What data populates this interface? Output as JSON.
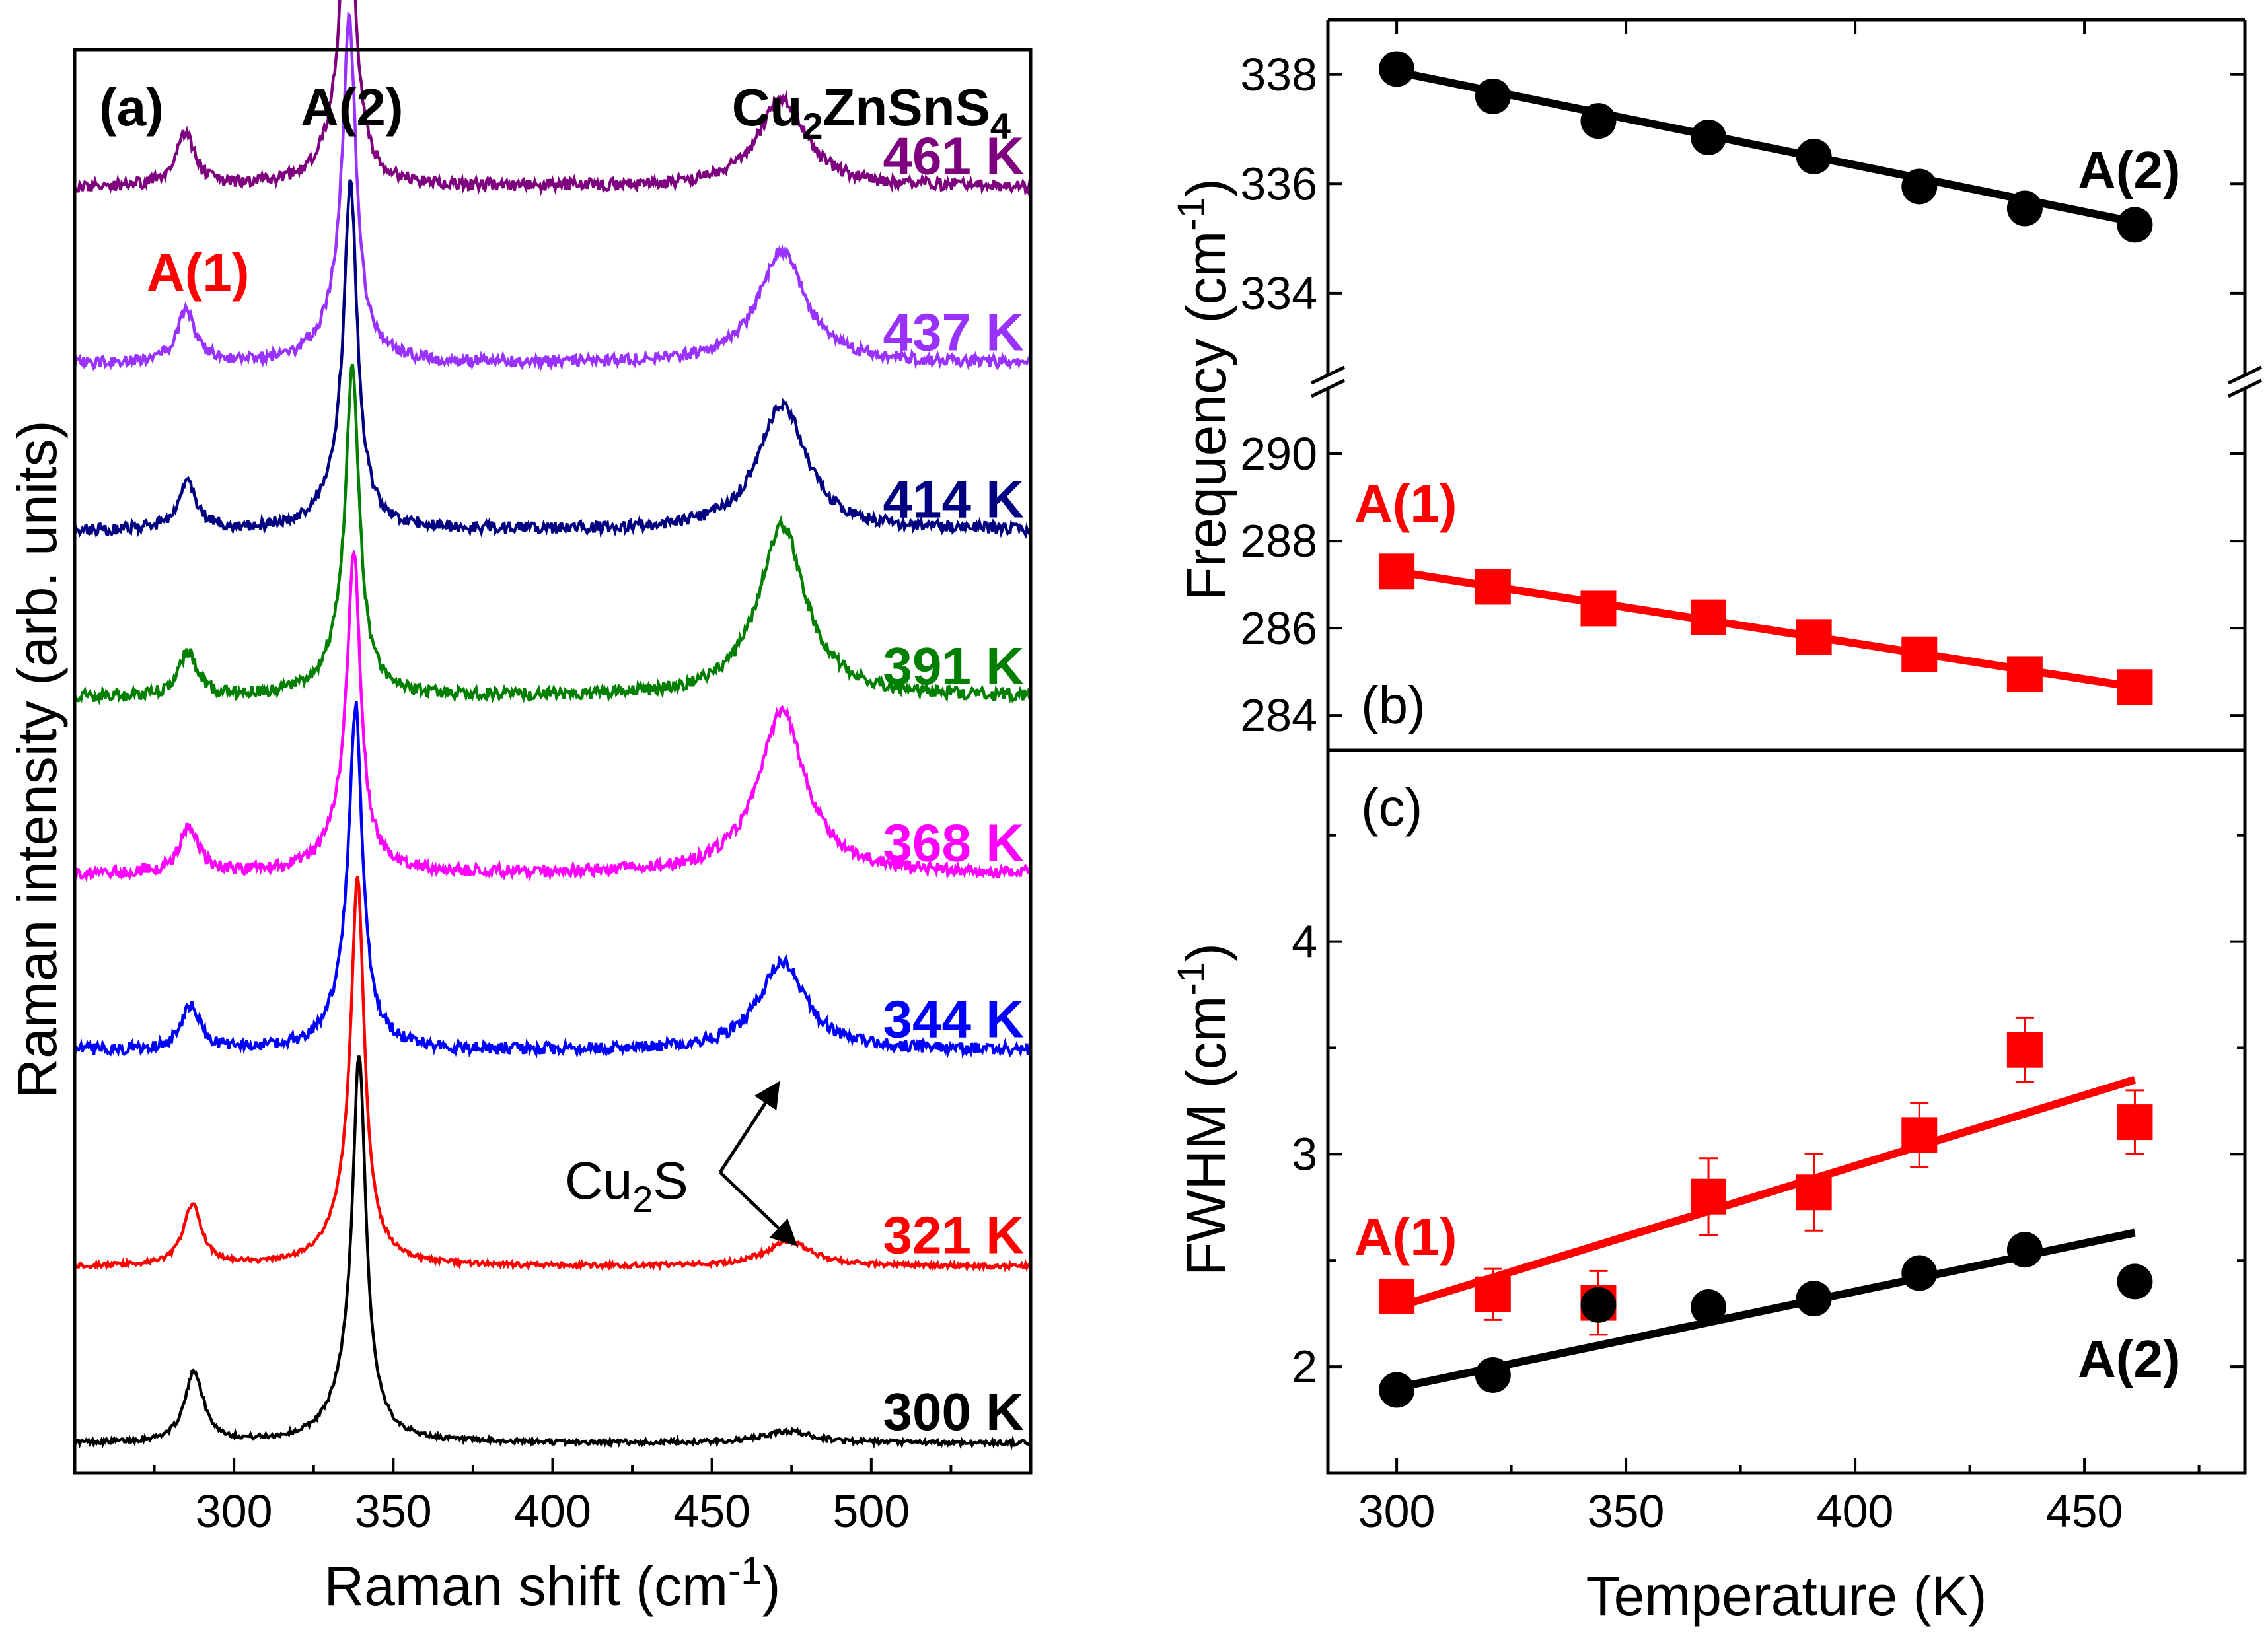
{
  "figure": {
    "panel_a": {
      "label": "(a)",
      "material": {
        "base": "Cu",
        "sub1": "2",
        "mid": "ZnSnS",
        "sub2": "4"
      },
      "peak_a1": "A(1)",
      "peak_a2": "A(2)",
      "cu2s": {
        "base": "Cu",
        "sub": "2",
        "tail": "S"
      },
      "xlabel": {
        "pre": "Raman shift (cm",
        "sup": "-1",
        "post": ")"
      },
      "ylabel": "Raman intensity (arb. units)"
    },
    "panel_b": {
      "label": "(b)",
      "ylabel": {
        "pre": "Frequency (cm",
        "sup": "-1",
        "post": ")"
      },
      "a1_label": "A(1)",
      "a2_label": "A(2)"
    },
    "panel_c": {
      "label": "(c)",
      "ylabel": {
        "pre": "FWHM (cm",
        "sup": "-1",
        "post": ")"
      },
      "xlabel": "Temperature (K)",
      "a1_label": "A(1)",
      "a2_label": "A(2)"
    }
  },
  "chart_data": [
    {
      "id": "a",
      "type": "line",
      "title": "Cu2ZnSnS4",
      "xlabel": "Raman shift (cm-1)",
      "ylabel": "Raman intensity (arb. units)",
      "xlim": [
        250,
        550
      ],
      "xticks": [
        300,
        350,
        400,
        450,
        500
      ],
      "ylim": [
        0,
        14
      ],
      "peaks": [
        {
          "name": "A(1)",
          "center": 287,
          "width": 3.5
        },
        {
          "name": "A(2)",
          "center": 338,
          "width": 2.5
        },
        {
          "name": "Cu2S",
          "center": 472,
          "width": 9
        }
      ],
      "series": [
        {
          "name": "300 K",
          "color": "#000000",
          "offset": 0.0,
          "a1_pos": 287.5,
          "a1_amp": 0.72,
          "a2_pos": 339.3,
          "a2_amp": 3.6,
          "cu_amp": 0.12,
          "noise": 0.05
        },
        {
          "name": "321 K",
          "color": "#ff0000",
          "offset": 1.8,
          "a1_pos": 287.0,
          "a1_amp": 0.62,
          "a2_pos": 338.8,
          "a2_amp": 3.6,
          "cu_amp": 0.25,
          "noise": 0.05
        },
        {
          "name": "344 K",
          "color": "#0000ff",
          "offset": 4.0,
          "a1_pos": 286.4,
          "a1_amp": 0.45,
          "a2_pos": 338.2,
          "a2_amp": 3.2,
          "cu_amp": 0.9,
          "noise": 0.12
        },
        {
          "name": "368 K",
          "color": "#ff00ff",
          "offset": 5.8,
          "a1_pos": 285.9,
          "a1_amp": 0.48,
          "a2_pos": 337.6,
          "a2_amp": 3.0,
          "cu_amp": 1.65,
          "noise": 0.12
        },
        {
          "name": "391 K",
          "color": "#007f00",
          "offset": 7.6,
          "a1_pos": 285.5,
          "a1_amp": 0.45,
          "a2_pos": 337.2,
          "a2_amp": 3.1,
          "cu_amp": 1.75,
          "noise": 0.12
        },
        {
          "name": "414 K",
          "color": "#000080",
          "offset": 9.3,
          "a1_pos": 285.2,
          "a1_amp": 0.48,
          "a2_pos": 336.6,
          "a2_amp": 3.2,
          "cu_amp": 1.3,
          "noise": 0.12
        },
        {
          "name": "437 K",
          "color": "#9932ff",
          "offset": 11.0,
          "a1_pos": 285.0,
          "a1_amp": 0.52,
          "a2_pos": 336.2,
          "a2_amp": 3.2,
          "cu_amp": 1.15,
          "noise": 0.12
        },
        {
          "name": "461 K",
          "color": "#7f007f",
          "offset": 12.8,
          "a1_pos": 284.7,
          "a1_amp": 0.55,
          "a2_pos": 335.8,
          "a2_amp": 3.1,
          "cu_amp": 0.9,
          "noise": 0.12
        }
      ],
      "annotations": [
        {
          "text": "Cu2S",
          "arrow_to": [
            {
              "x": 473,
              "intensity_of": "344 K"
            },
            {
              "x": 473,
              "intensity_of": "321 K"
            }
          ]
        }
      ]
    },
    {
      "id": "b",
      "type": "scatter",
      "ylabel": "Frequency (cm-1)",
      "broken_axis": true,
      "xlim": [
        285,
        485
      ],
      "ylim_upper": [
        332.5,
        339
      ],
      "yticks_upper": [
        334,
        336,
        338
      ],
      "ylim_lower": [
        283.2,
        291.5
      ],
      "yticks_lower": [
        284,
        286,
        288,
        290
      ],
      "x": [
        300,
        321,
        344,
        368,
        391,
        414,
        437,
        461
      ],
      "series": [
        {
          "name": "A(2)",
          "marker": "circle",
          "color": "#000000",
          "values": [
            338.1,
            337.6,
            337.15,
            336.85,
            336.5,
            335.95,
            335.55,
            335.25
          ],
          "fit": [
            338.05,
            335.3
          ]
        },
        {
          "name": "A(1)",
          "marker": "square",
          "color": "#ff0000",
          "values": [
            287.3,
            286.95,
            286.45,
            286.25,
            285.8,
            285.4,
            284.95,
            284.65
          ],
          "fit": [
            287.3,
            284.65
          ]
        }
      ]
    },
    {
      "id": "c",
      "type": "scatter",
      "xlabel": "Temperature (K)",
      "ylabel": "FWHM (cm-1)",
      "xlim": [
        285,
        485
      ],
      "xticks": [
        300,
        350,
        400,
        450
      ],
      "ylim": [
        1.5,
        4.9
      ],
      "yticks": [
        2,
        3,
        4
      ],
      "x": [
        300,
        321,
        344,
        368,
        391,
        414,
        437,
        461
      ],
      "series": [
        {
          "name": "A(1)",
          "marker": "square",
          "color": "#ff0000",
          "values": [
            2.33,
            2.34,
            2.3,
            2.8,
            2.82,
            3.09,
            3.49,
            3.15
          ],
          "errors": [
            0.0,
            0.12,
            0.15,
            0.18,
            0.18,
            0.15,
            0.15,
            0.15
          ],
          "fit": [
            2.28,
            3.35
          ]
        },
        {
          "name": "A(2)",
          "marker": "circle",
          "color": "#000000",
          "values": [
            1.89,
            1.96,
            2.29,
            2.28,
            2.32,
            2.44,
            2.55,
            2.4
          ],
          "fit": [
            1.9,
            2.63
          ]
        }
      ]
    }
  ]
}
